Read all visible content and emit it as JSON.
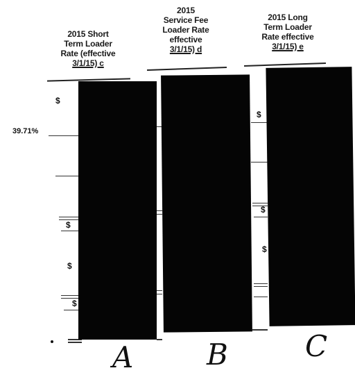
{
  "columns": [
    {
      "header_lines": [
        "2015 Short",
        "Term Loader",
        "Rate (effective",
        "3/1/15) c"
      ],
      "symbols": [
        "$",
        "$",
        "$",
        "$"
      ],
      "handwritten_letter": "A"
    },
    {
      "header_lines": [
        "2015",
        "Service Fee",
        "Loader Rate",
        "effective",
        "3/1/15) d"
      ],
      "symbols": [
        "$",
        "$"
      ],
      "handwritten_letter": "B"
    },
    {
      "header_lines": [
        "2015 Long",
        "Term Loader",
        "Rate effective",
        "3/1/15) e"
      ],
      "symbols": [
        "$",
        "$",
        "$"
      ],
      "handwritten_letter": "C"
    }
  ],
  "left_value": "39.71%"
}
